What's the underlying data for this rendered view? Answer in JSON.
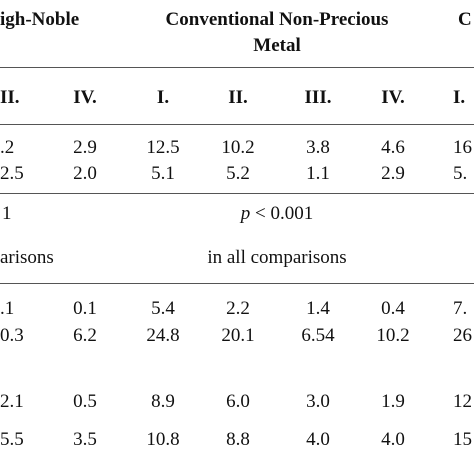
{
  "header": {
    "group_left": "igh-Noble",
    "group_center_line1": "Conventional Non-Precious",
    "group_center_line2": "Metal",
    "group_right": "C"
  },
  "columns": [
    "II.",
    "IV.",
    "I.",
    "II.",
    "III.",
    "IV.",
    "I."
  ],
  "rows": [
    [
      ".2",
      "2.9",
      "12.5",
      "10.2",
      "3.8",
      "4.6",
      "16"
    ],
    [
      "2.5",
      "2.0",
      "5.1",
      "5.2",
      "1.1",
      "2.9",
      "5."
    ],
    [
      ".1",
      "0.1",
      "5.4",
      "2.2",
      "1.4",
      "0.4",
      "7."
    ],
    [
      "0.3",
      "6.2",
      "24.8",
      "20.1",
      "6.54",
      "10.2",
      "26"
    ],
    [
      "2.1",
      "0.5",
      "8.9",
      "6.0",
      "3.0",
      "1.9",
      "12"
    ],
    [
      "5.5",
      "3.5",
      "10.8",
      "8.8",
      "4.0",
      "4.0",
      "15"
    ]
  ],
  "p_row": {
    "left": "1",
    "p_symbol": "p",
    "p_text": "< 0.001"
  },
  "note_row": {
    "left": "arisons",
    "center": "in all comparisons"
  }
}
